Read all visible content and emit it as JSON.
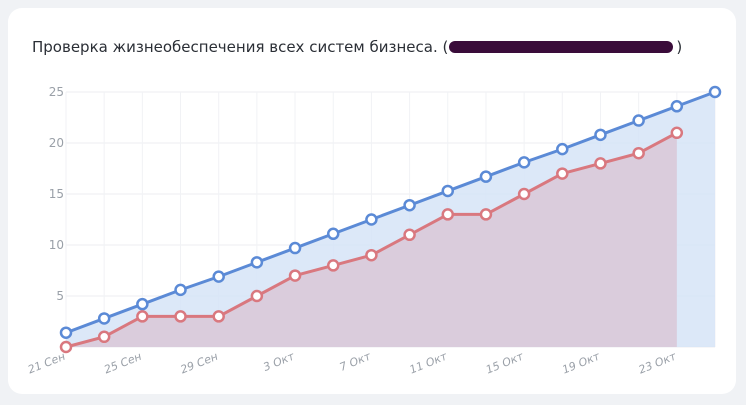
{
  "card": {
    "title_prefix": "Проверка жизнеобеспечения всех систем бизнеса. (",
    "title_suffix": ")"
  },
  "chart_data": {
    "type": "area",
    "title": "Проверка жизнеобеспечения всех систем бизнеса.",
    "xlabel": "",
    "ylabel": "",
    "ylim": [
      0,
      25
    ],
    "y_ticks": [
      5,
      10,
      15,
      20,
      25
    ],
    "grid": true,
    "legend": "none",
    "x_tick_labels": [
      "21 Сен",
      "25 Сен",
      "29 Сен",
      "3 Окт",
      "7 Окт",
      "11 Окт",
      "15 Окт",
      "19 Окт",
      "23 Окт"
    ],
    "x_tick_positions": [
      0,
      2,
      4,
      6,
      8,
      10,
      12,
      14,
      16
    ],
    "x_count": 18,
    "series": [
      {
        "color": "#5b8ad6",
        "fill": "#d6e4f7",
        "values": [
          1.4,
          2.8,
          4.2,
          5.6,
          6.9,
          8.3,
          9.7,
          11.1,
          12.5,
          13.9,
          15.3,
          16.7,
          18.1,
          19.4,
          20.8,
          22.2,
          23.6,
          25.0
        ]
      },
      {
        "color": "#d9787f",
        "fill": "#d9c9d8",
        "values": [
          0,
          1,
          3,
          3,
          3,
          5,
          7,
          8,
          9,
          11,
          13,
          13,
          15,
          17,
          18,
          19,
          21
        ]
      }
    ]
  }
}
